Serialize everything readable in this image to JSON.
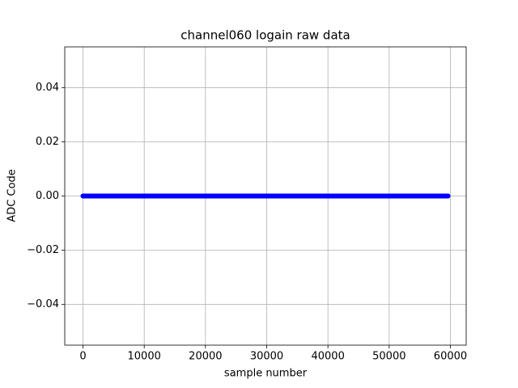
{
  "chart_data": {
    "type": "line",
    "title": "channel060 logain raw data",
    "x_label": "sample number",
    "y_label": "ADC Code",
    "series": [
      {
        "color": "#0000ff",
        "x": [
          0,
          59600
        ],
        "values": [
          0,
          0
        ]
      }
    ],
    "xlim": [
      -2980,
      62580
    ],
    "xticks": [
      0,
      10000,
      20000,
      30000,
      40000,
      50000,
      60000
    ],
    "ylim": [
      -0.055,
      0.055
    ],
    "yticks": [
      {
        "value": -0.04,
        "label": "−0.04"
      },
      {
        "value": -0.02,
        "label": "−0.02"
      },
      {
        "value": 0,
        "label": "0.00"
      },
      {
        "value": 0.02,
        "label": "0.02"
      },
      {
        "value": 0.04,
        "label": "0.04"
      }
    ],
    "grid": true
  }
}
